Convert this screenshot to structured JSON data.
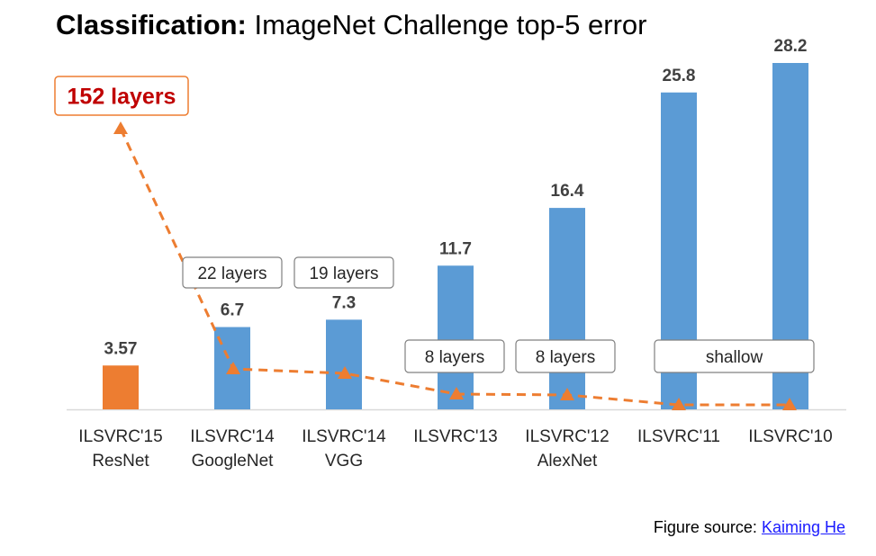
{
  "title": {
    "bold": "Classification:",
    "rest": "ImageNet Challenge top-5 error"
  },
  "source": {
    "label": "Figure source:",
    "link": "Kaiming He"
  },
  "colors": {
    "bar": "#5b9bd5",
    "highlight": "#ed7d31",
    "layer_line": "#ed7d31",
    "callout_text": "#c00000"
  },
  "chart_data": {
    "type": "bar",
    "categories": [
      [
        "ILSVRC'15",
        "ResNet"
      ],
      [
        "ILSVRC'14",
        "GoogleNet"
      ],
      [
        "ILSVRC'14",
        "VGG"
      ],
      [
        "ILSVRC'13"
      ],
      [
        "ILSVRC'12",
        "AlexNet"
      ],
      [
        "ILSVRC'11"
      ],
      [
        "ILSVRC'10"
      ]
    ],
    "values": [
      3.57,
      6.7,
      7.3,
      11.7,
      16.4,
      25.8,
      28.2
    ],
    "value_labels": [
      "3.57",
      "6.7",
      "7.3",
      "11.7",
      "16.4",
      "25.8",
      "28.2"
    ],
    "highlight_index": 0,
    "ylim": [
      0,
      30
    ],
    "layer_annotations": [
      {
        "index": 0,
        "text": "152 layers",
        "emphasis": true
      },
      {
        "index": 1,
        "text": "22 layers"
      },
      {
        "index": 2,
        "text": "19 layers"
      },
      {
        "index": 3,
        "text": "8 layers"
      },
      {
        "index": 4,
        "text": "8 layers"
      },
      {
        "indices": [
          5,
          6
        ],
        "text": "shallow"
      }
    ],
    "layer_line": {
      "style": "dashed",
      "marker": "triangle",
      "points": [
        152,
        22,
        19,
        8,
        8,
        0,
        0
      ]
    }
  }
}
